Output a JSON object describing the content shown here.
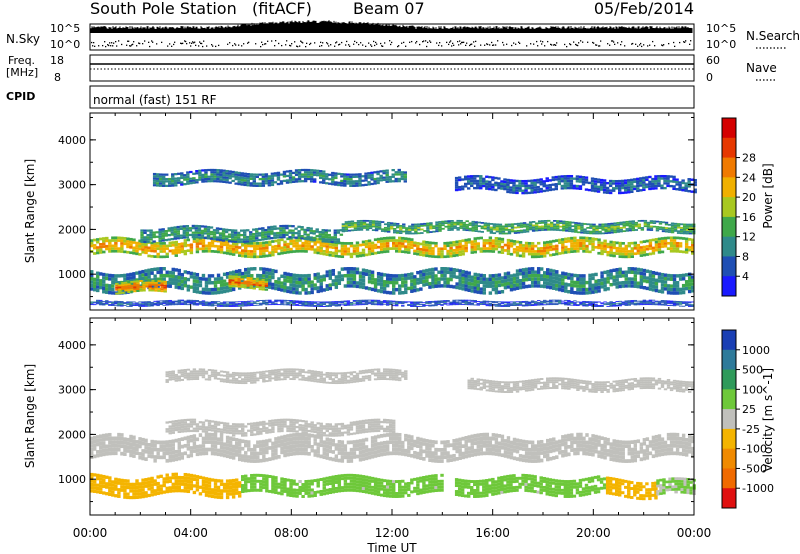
{
  "header": {
    "station": "South Pole Station",
    "algorithm": "(fitACF)",
    "beam": "Beam 07",
    "date": "05/Feb/2014"
  },
  "nsky_panel": {
    "left_label": "N.Sky",
    "right_label": "N.Search",
    "top_tick": "10^5",
    "bottom_tick": "10^0"
  },
  "freq_panel": {
    "label_line1": "Freq.",
    "label_line2": "[MHz]",
    "left_ticks": [
      "18",
      "8"
    ],
    "right_label": "Nave",
    "right_ticks": [
      "60",
      "0"
    ]
  },
  "cpid_panel": {
    "label": "CPID",
    "text": "normal (fast) 151 RF"
  },
  "x_axis": {
    "label": "Time UT",
    "ticks": [
      "00:00",
      "04:00",
      "08:00",
      "12:00",
      "16:00",
      "20:00",
      "00:00"
    ]
  },
  "power_panel": {
    "ylabel": "Slant Range [km]",
    "yticks": [
      "1000",
      "2000",
      "3000",
      "4000"
    ],
    "colorbar_label": "Power [dB]",
    "colorbar_ticks": [
      "4",
      "8",
      "12",
      "16",
      "20",
      "24",
      "28"
    ],
    "colors": [
      "#1a1aff",
      "#1f4fb4",
      "#2f8a8a",
      "#3fa84a",
      "#a8c820",
      "#f0b000",
      "#f07a00",
      "#e63800",
      "#d40000"
    ]
  },
  "velocity_panel": {
    "ylabel": "Slant Range [km]",
    "yticks": [
      "1000",
      "2000",
      "3000",
      "4000"
    ],
    "colorbar_label": "Velocity [m s^-1]",
    "colorbar_ticks": [
      "1000",
      "500",
      "100",
      "25",
      "-25",
      "-100",
      "-500",
      "-1000"
    ],
    "colors": [
      "#1a3fb4",
      "#2e7a9a",
      "#2f9a5a",
      "#6ec83a",
      "#c0c0bc",
      "#f4b400",
      "#f08a00",
      "#f06a00",
      "#e01010"
    ]
  },
  "chart_data": [
    {
      "type": "heatmap",
      "title": "",
      "xlabel": "Time UT",
      "ylabel": "Slant Range [km]",
      "xlim": [
        0,
        24
      ],
      "ylim": [
        200,
        4600
      ],
      "colorbar": {
        "label": "Power [dB]",
        "range": [
          0,
          32
        ]
      },
      "bands": [
        {
          "t_start": 0.0,
          "t_end": 24.0,
          "range_center": 1600,
          "half_width": 180,
          "value": 22
        },
        {
          "t_start": 2.0,
          "t_end": 10.0,
          "range_center": 1900,
          "half_width": 150,
          "value": 12
        },
        {
          "t_start": 10.0,
          "t_end": 24.0,
          "range_center": 2050,
          "half_width": 120,
          "value": 14
        },
        {
          "t_start": 0.0,
          "t_end": 24.0,
          "range_center": 850,
          "half_width": 230,
          "value": 11
        },
        {
          "t_start": 1.0,
          "t_end": 3.0,
          "range_center": 700,
          "half_width": 130,
          "value": 26
        },
        {
          "t_start": 5.5,
          "t_end": 7.0,
          "range_center": 800,
          "half_width": 130,
          "value": 25
        },
        {
          "t_start": 2.5,
          "t_end": 12.5,
          "range_center": 3150,
          "half_width": 150,
          "value": 10
        },
        {
          "t_start": 14.5,
          "t_end": 24.0,
          "range_center": 3000,
          "half_width": 160,
          "value": 7
        },
        {
          "t_start": 0.0,
          "t_end": 24.0,
          "range_center": 350,
          "half_width": 60,
          "value": 6
        }
      ]
    },
    {
      "type": "heatmap",
      "title": "",
      "xlabel": "Time UT",
      "ylabel": "Slant Range [km]",
      "xlim": [
        0,
        24
      ],
      "ylim": [
        200,
        4600
      ],
      "colorbar": {
        "label": "Velocity [m s^-1]",
        "range": [
          -1000,
          1000
        ]
      },
      "bands": [
        {
          "t_start": 0.0,
          "t_end": 24.0,
          "range_center": 1700,
          "half_width": 250,
          "value": 0
        },
        {
          "t_start": 3.0,
          "t_end": 12.0,
          "range_center": 2150,
          "half_width": 150,
          "value": 0
        },
        {
          "t_start": 0.0,
          "t_end": 6.0,
          "range_center": 850,
          "half_width": 220,
          "value": -200
        },
        {
          "t_start": 6.0,
          "t_end": 14.0,
          "range_center": 850,
          "half_width": 200,
          "value": 150
        },
        {
          "t_start": 14.5,
          "t_end": 20.5,
          "range_center": 850,
          "half_width": 200,
          "value": 150
        },
        {
          "t_start": 20.5,
          "t_end": 22.5,
          "range_center": 800,
          "half_width": 200,
          "value": -200
        },
        {
          "t_start": 22.5,
          "t_end": 24.0,
          "range_center": 800,
          "half_width": 180,
          "value": 120
        },
        {
          "t_start": 3.0,
          "t_end": 12.5,
          "range_center": 3300,
          "half_width": 130,
          "value": 0
        },
        {
          "t_start": 15.0,
          "t_end": 24.0,
          "range_center": 3100,
          "half_width": 130,
          "value": 0
        }
      ]
    }
  ]
}
